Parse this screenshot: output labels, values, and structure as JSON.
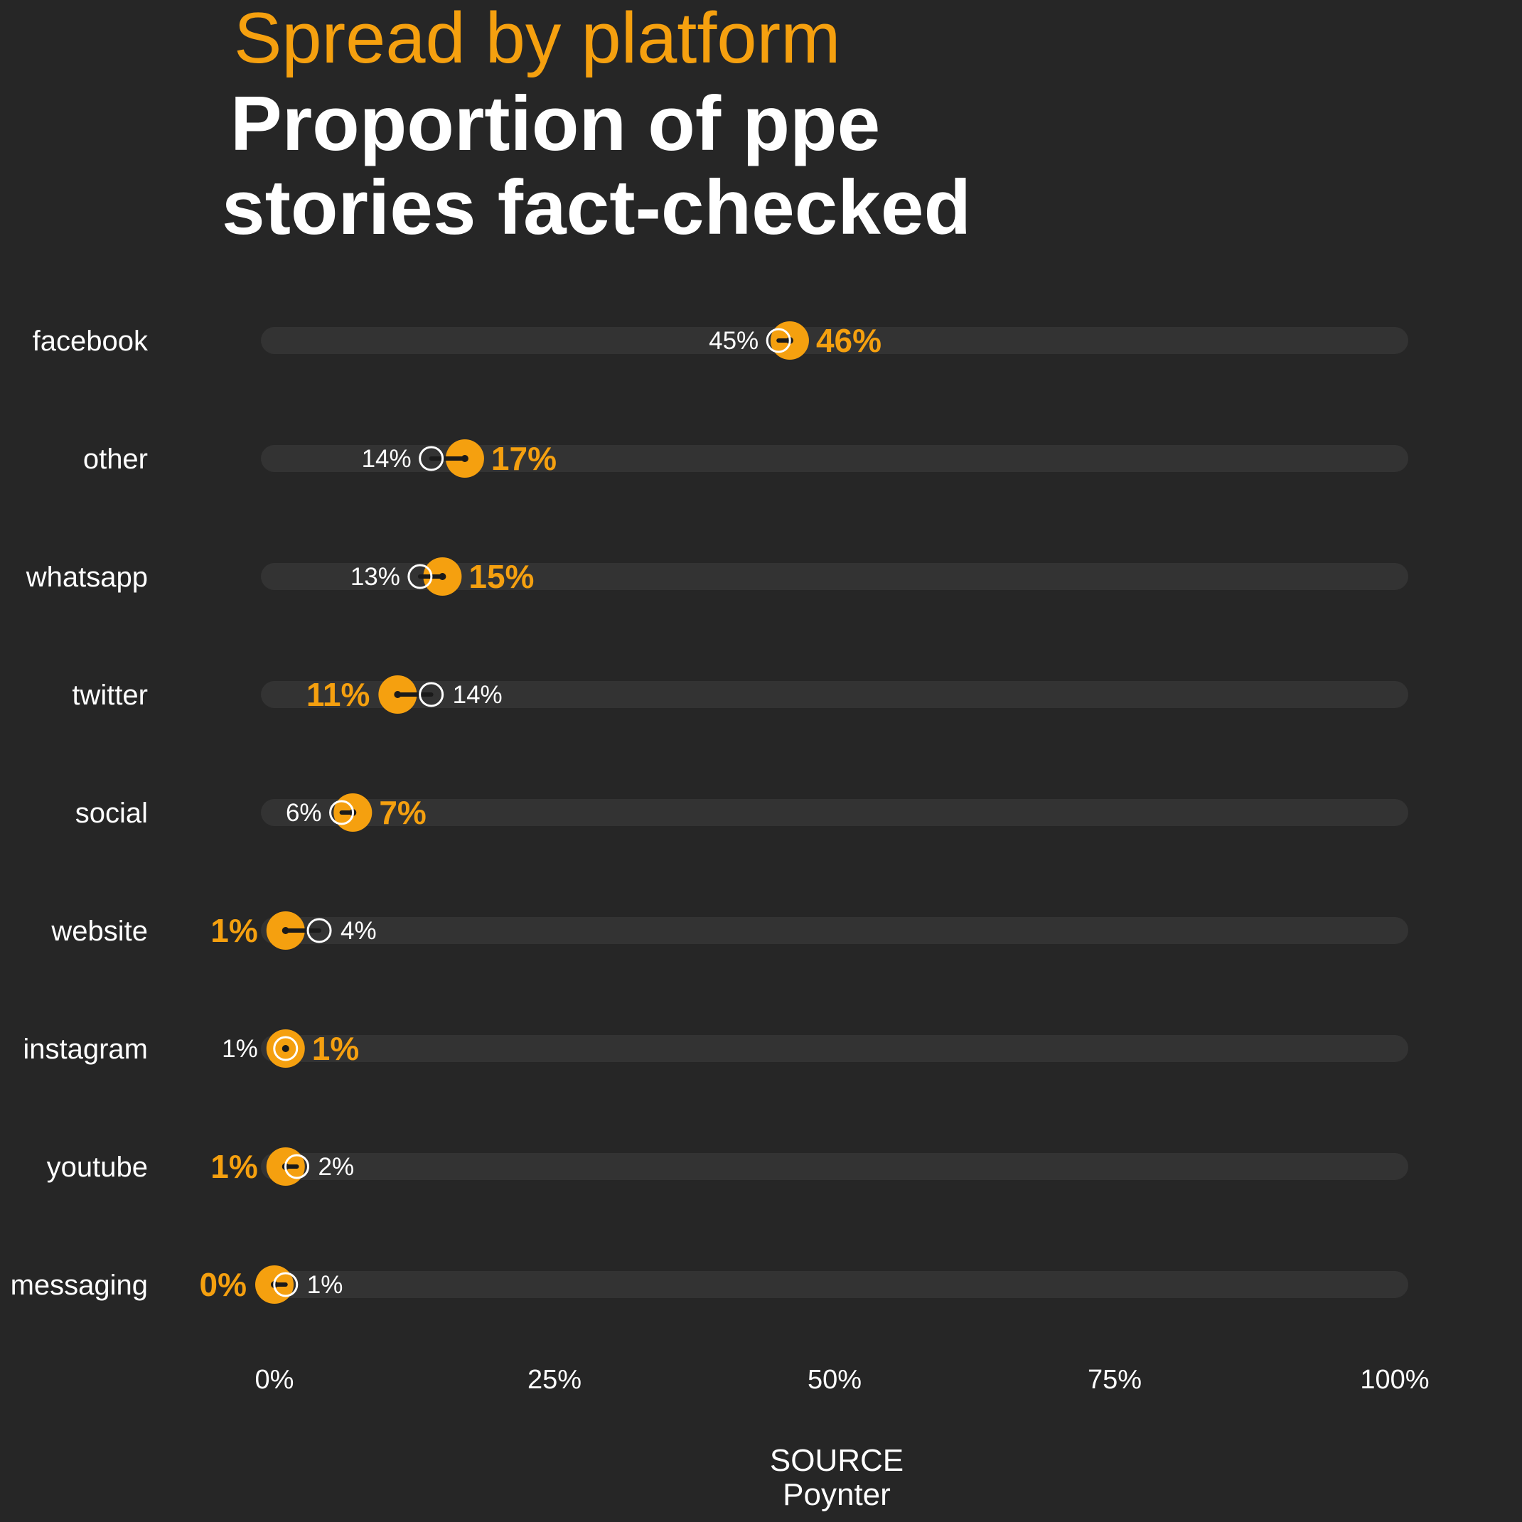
{
  "header": {
    "subtitle": "Spread by platform",
    "title_line1": "Proportion of ppe",
    "title_line2": "stories fact-checked"
  },
  "source": {
    "label": "SOURCE",
    "name": "Poynter"
  },
  "colors": {
    "background": "#262626",
    "track": "#333333",
    "accent": "#f5a00f",
    "text": "#ffffff",
    "connector": "#1a1a1a"
  },
  "chart_data": {
    "type": "dumbbell",
    "title": "Proportion of ppe stories fact-checked",
    "subtitle": "Spread by platform",
    "xlim": [
      0,
      100
    ],
    "x_ticks": [
      0,
      25,
      50,
      75,
      100
    ],
    "x_tick_labels": [
      "0%",
      "25%",
      "50%",
      "75%",
      "100%"
    ],
    "grid": false,
    "categories": [
      "facebook",
      "other",
      "whatsapp",
      "twitter",
      "social",
      "website",
      "instagram",
      "youtube",
      "messaging"
    ],
    "series": [
      {
        "marker": "hollow-circle",
        "values": [
          45,
          14,
          13,
          14,
          6,
          4,
          1,
          2,
          1
        ],
        "labels": [
          "45%",
          "14%",
          "13%",
          "14%",
          "6%",
          "4%",
          "1%",
          "2%",
          "1%"
        ]
      },
      {
        "marker": "filled-circle",
        "values": [
          46,
          17,
          15,
          11,
          7,
          1,
          1,
          1,
          0
        ],
        "labels": [
          "46%",
          "17%",
          "15%",
          "11%",
          "7%",
          "1%",
          "1%",
          "1%",
          "0%"
        ]
      }
    ]
  }
}
